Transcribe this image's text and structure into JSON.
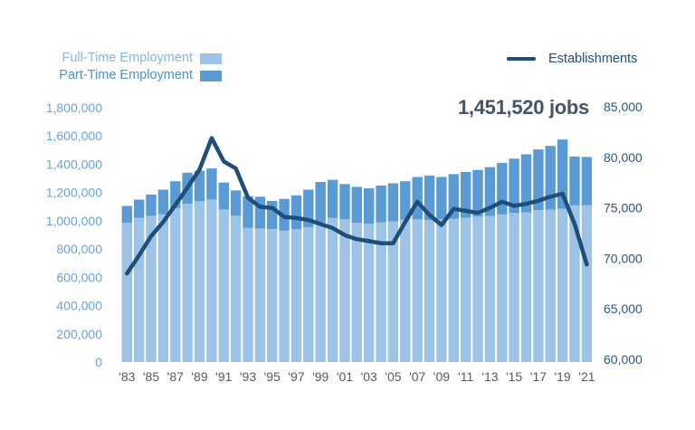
{
  "legend": {
    "full_time": {
      "label": "Full-Time Employment",
      "text_color": "#85B7E2",
      "swatch_color": "#9DC3E6"
    },
    "part_time": {
      "label": "Part-Time Employment",
      "text_color": "#4D91D1",
      "swatch_color": "#5B9BD5"
    },
    "establishments": {
      "label": "Establishments",
      "text_color": "#1F4E79",
      "swatch_color": "#1F4E79"
    }
  },
  "annotation_color": "#44546A",
  "chart_data": {
    "type": "combo",
    "annotation": "1,451,520 jobs",
    "grid": "off",
    "legend_position": "top",
    "years": [
      1983,
      1984,
      1985,
      1986,
      1987,
      1988,
      1989,
      1990,
      1991,
      1992,
      1993,
      1994,
      1995,
      1996,
      1997,
      1998,
      1999,
      2000,
      2001,
      2002,
      2003,
      2004,
      2005,
      2006,
      2007,
      2008,
      2009,
      2010,
      2011,
      2012,
      2013,
      2014,
      2015,
      2016,
      2017,
      2018,
      2019,
      2020,
      2021
    ],
    "xtick_labels": [
      "'83",
      "'85",
      "'87",
      "'89",
      "'91",
      "'93",
      "'95",
      "'97",
      "'99",
      "'01",
      "'03",
      "'05",
      "'07",
      "'09",
      "'11",
      "'13",
      "'15",
      "'17",
      "'19",
      "'21"
    ],
    "series": [
      {
        "name": "Full-Time Employment",
        "type": "bar",
        "stack": "employment",
        "axis": "left",
        "color": "#9DC3E6",
        "values": [
          985000,
          1020000,
          1035000,
          1045000,
          1090000,
          1120000,
          1140000,
          1150000,
          1080000,
          1035000,
          950000,
          945000,
          940000,
          930000,
          940000,
          955000,
          990000,
          1020000,
          1010000,
          985000,
          980000,
          990000,
          995000,
          1010000,
          1010000,
          1005000,
          1010000,
          1015000,
          1020000,
          1030000,
          1035000,
          1045000,
          1055000,
          1060000,
          1075000,
          1080000,
          1085000,
          1110000,
          1110000
        ]
      },
      {
        "name": "Part-Time Employment",
        "type": "bar",
        "stack": "employment",
        "axis": "left",
        "color": "#5B9BD5",
        "values": [
          120000,
          130000,
          150000,
          175000,
          190000,
          220000,
          215000,
          220000,
          190000,
          180000,
          225000,
          225000,
          200000,
          225000,
          240000,
          265000,
          285000,
          270000,
          250000,
          255000,
          250000,
          260000,
          270000,
          270000,
          300000,
          315000,
          300000,
          315000,
          325000,
          330000,
          345000,
          365000,
          385000,
          410000,
          430000,
          450000,
          490000,
          345000,
          341520
        ]
      },
      {
        "name": "Establishments",
        "type": "line",
        "axis": "right",
        "color": "#1F4E79",
        "values": [
          68500,
          70300,
          72200,
          73600,
          75300,
          77000,
          78800,
          81900,
          79600,
          78900,
          76000,
          75100,
          75000,
          74100,
          74000,
          73800,
          73400,
          73000,
          72300,
          71900,
          71700,
          71500,
          71500,
          73600,
          75600,
          74300,
          73300,
          74900,
          74700,
          74500,
          75000,
          75600,
          75200,
          75400,
          75700,
          76100,
          76400,
          73400,
          69400
        ]
      }
    ],
    "left_axis": {
      "color": "#68A3DA",
      "range": [
        0,
        1800000
      ],
      "ticks": [
        "0",
        "200,000",
        "400,000",
        "600,000",
        "800,000",
        "1,000,000",
        "1,200,000",
        "1,400,000",
        "1,600,000",
        "1,800,000"
      ]
    },
    "right_axis": {
      "color": "#2A5783",
      "range": [
        60000,
        85000
      ],
      "ticks": [
        "60,000",
        "65,000",
        "70,000",
        "75,000",
        "80,000",
        "85,000"
      ]
    },
    "x_axis": {
      "color": "#595959"
    }
  }
}
